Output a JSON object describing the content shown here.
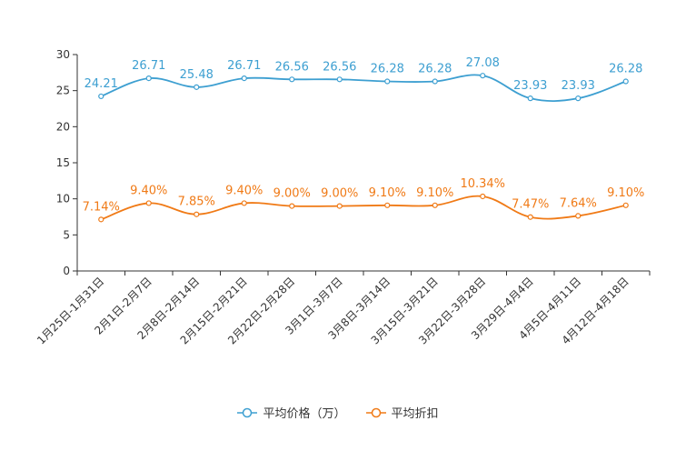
{
  "chart_data": {
    "type": "line",
    "categories": [
      "1月25日-1月31日",
      "2月1日-2月7日",
      "2月8日-2月14日",
      "2月15日-2月21日",
      "2月22日-2月28日",
      "3月1日-3月7日",
      "3月8日-3月14日",
      "3月15日-3月21日",
      "3月22日-3月28日",
      "3月29日-4月4日",
      "4月5日-4月11日",
      "4月12日-4月18日"
    ],
    "ylim": [
      0,
      30
    ],
    "yticks": [
      "0",
      "5",
      "10",
      "15",
      "20",
      "25",
      "30"
    ],
    "series": [
      {
        "name": "平均价格（万）",
        "color": "#3d9fd1",
        "values": [
          24.21,
          26.71,
          25.48,
          26.71,
          26.56,
          26.56,
          26.28,
          26.28,
          27.08,
          23.93,
          23.93,
          26.28
        ],
        "labels": [
          "24.21",
          "26.71",
          "25.48",
          "26.71",
          "26.56",
          "26.56",
          "26.28",
          "26.28",
          "27.08",
          "23.93",
          "23.93",
          "26.28"
        ]
      },
      {
        "name": "平均折扣",
        "color": "#f07a16",
        "values": [
          7.14,
          9.4,
          7.85,
          9.4,
          9.0,
          9.0,
          9.1,
          9.1,
          10.34,
          7.47,
          7.64,
          9.1
        ],
        "labels": [
          "7.14%",
          "9.40%",
          "7.85%",
          "9.40%",
          "9.00%",
          "9.00%",
          "9.10%",
          "9.10%",
          "10.34%",
          "7.47%",
          "7.64%",
          "9.10%"
        ]
      }
    ],
    "legend_position": "bottom-center",
    "grid": false
  }
}
